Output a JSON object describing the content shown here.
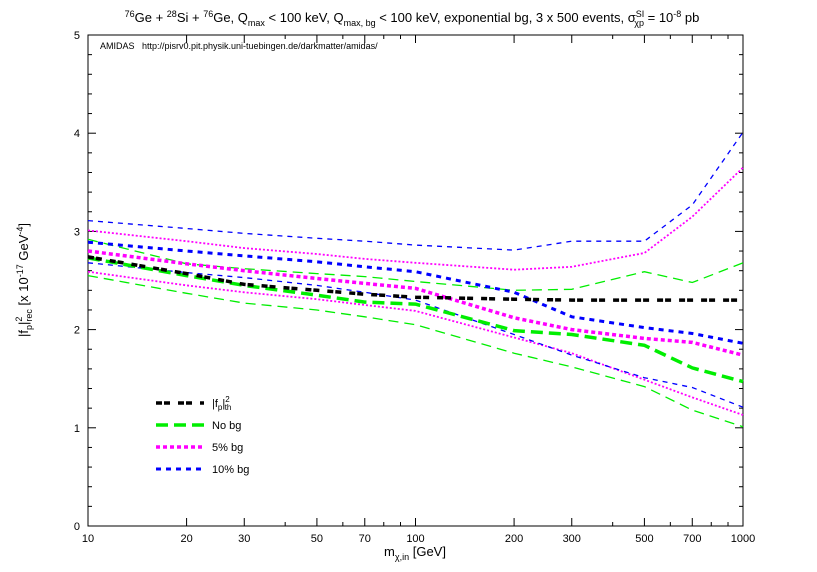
{
  "chart_data": {
    "type": "line",
    "title": {
      "parts": [
        "76",
        "Ge + ",
        "28",
        "Si + ",
        "76",
        "Ge, Q",
        "max",
        " < 100 keV, Q",
        "max, bg",
        " < 100 keV, exponential bg, 3 x 500 events, σ",
        "SI",
        "χp",
        " = 10",
        "-8",
        " pb"
      ]
    },
    "annotation": "AMIDAS   http://pisrv0.pit.physik.uni-tuebingen.de/darkmatter/amidas/",
    "xlabel": {
      "main": "m",
      "sub": "χ,in",
      "unit": " [GeV]"
    },
    "ylabel": {
      "main": "|f",
      "sub1": "p",
      "mid": "|",
      "sup": "2",
      "sub2": "rec",
      "unit": "  [x 10",
      "exp1": "-17",
      "unit2": " GeV",
      "exp2": "-4",
      "end": "]"
    },
    "x_scale": "log",
    "xlim": [
      10,
      1000
    ],
    "ylim": [
      0,
      5
    ],
    "xticks": [
      10,
      20,
      30,
      50,
      70,
      100,
      200,
      300,
      500,
      700,
      1000
    ],
    "yticks": [
      0,
      1,
      2,
      3,
      4,
      5
    ],
    "grid": false,
    "legend_placement": "bottom-left",
    "x": [
      10,
      20,
      30,
      50,
      70,
      100,
      200,
      300,
      500,
      700,
      1000
    ],
    "series": [
      {
        "name": "|fp|2th",
        "legend": {
          "main": "|f",
          "sub": "p",
          "mid": "|",
          "sup": "2",
          "sub2": "th"
        },
        "color": "#000000",
        "style": "thick-dot",
        "values": [
          2.74,
          2.57,
          2.46,
          2.4,
          2.36,
          2.33,
          2.31,
          2.3,
          2.3,
          2.3,
          2.3
        ]
      },
      {
        "name": "No bg",
        "color": "#00ee00",
        "style": "thick-dash",
        "values": [
          2.73,
          2.55,
          2.45,
          2.35,
          2.28,
          2.26,
          1.99,
          1.95,
          1.84,
          1.61,
          1.47
        ]
      },
      {
        "color": "#00ee00",
        "style": "thin-dash",
        "values": [
          2.92,
          2.67,
          2.62,
          2.57,
          2.54,
          2.49,
          2.4,
          2.41,
          2.59,
          2.48,
          2.68
        ]
      },
      {
        "color": "#00ee00",
        "style": "thin-dash",
        "values": [
          2.55,
          2.37,
          2.27,
          2.2,
          2.13,
          2.05,
          1.76,
          1.62,
          1.42,
          1.18,
          1.01
        ]
      },
      {
        "name": "5% bg",
        "color": "#ff00ff",
        "style": "thick-dot",
        "values": [
          2.8,
          2.67,
          2.6,
          2.52,
          2.47,
          2.42,
          2.12,
          2.0,
          1.91,
          1.87,
          1.74
        ]
      },
      {
        "color": "#ff00ff",
        "style": "thin-dot",
        "values": [
          3.01,
          2.9,
          2.83,
          2.77,
          2.72,
          2.68,
          2.61,
          2.64,
          2.78,
          3.15,
          3.65
        ]
      },
      {
        "color": "#ff00ff",
        "style": "thin-dot",
        "values": [
          2.59,
          2.45,
          2.38,
          2.31,
          2.25,
          2.19,
          1.92,
          1.76,
          1.49,
          1.31,
          1.13
        ]
      },
      {
        "name": "10% bg",
        "color": "#0000ff",
        "style": "thick-short",
        "values": [
          2.89,
          2.8,
          2.75,
          2.69,
          2.64,
          2.59,
          2.38,
          2.13,
          2.02,
          1.96,
          1.86
        ]
      },
      {
        "color": "#0000ff",
        "style": "thin-short",
        "values": [
          3.11,
          3.03,
          2.98,
          2.93,
          2.9,
          2.86,
          2.81,
          2.9,
          2.9,
          3.27,
          4.01
        ]
      },
      {
        "color": "#0000ff",
        "style": "thin-short",
        "values": [
          2.68,
          2.58,
          2.53,
          2.45,
          2.38,
          2.3,
          1.95,
          1.74,
          1.51,
          1.41,
          1.21
        ]
      }
    ]
  }
}
